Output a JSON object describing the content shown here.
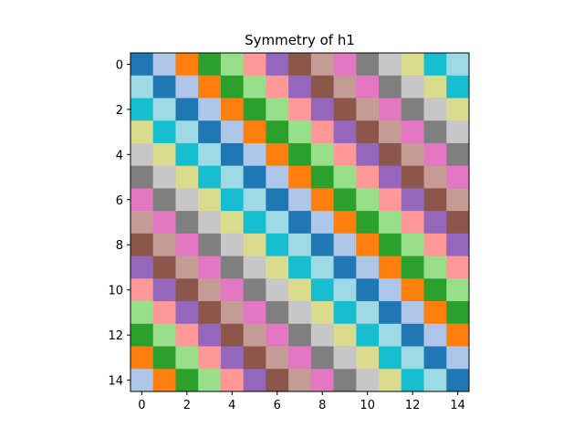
{
  "chart_data": {
    "type": "heatmap",
    "title": "Symmetry of h1",
    "xlabel": "",
    "ylabel": "",
    "rows": 15,
    "cols": 15,
    "xlim": [
      -0.5,
      14.5
    ],
    "ylim": [
      14.5,
      -0.5
    ],
    "x_ticks": [
      0,
      2,
      4,
      6,
      8,
      10,
      12,
      14
    ],
    "y_ticks": [
      0,
      2,
      4,
      6,
      8,
      10,
      12,
      14
    ],
    "x_tick_labels": [
      "0",
      "2",
      "4",
      "6",
      "8",
      "10",
      "12",
      "14"
    ],
    "y_tick_labels": [
      "0",
      "2",
      "4",
      "6",
      "8",
      "10",
      "12",
      "14"
    ],
    "colormap": "tab20",
    "palette": [
      "#1f77b4",
      "#aec7e8",
      "#ff7f0e",
      "#2ca02c",
      "#98df8a",
      "#ff9896",
      "#9467bd",
      "#8c564b",
      "#c49c94",
      "#e377c2",
      "#7f7f7f",
      "#c7c7c7",
      "#dbdb8d",
      "#17becf",
      "#9edae5"
    ],
    "values": [
      [
        0,
        1,
        2,
        3,
        4,
        5,
        6,
        7,
        8,
        9,
        10,
        11,
        12,
        13,
        14
      ],
      [
        14,
        0,
        1,
        2,
        3,
        4,
        5,
        6,
        7,
        8,
        9,
        10,
        11,
        12,
        13
      ],
      [
        13,
        14,
        0,
        1,
        2,
        3,
        4,
        5,
        6,
        7,
        8,
        9,
        10,
        11,
        12
      ],
      [
        12,
        13,
        14,
        0,
        1,
        2,
        3,
        4,
        5,
        6,
        7,
        8,
        9,
        10,
        11
      ],
      [
        11,
        12,
        13,
        14,
        0,
        1,
        2,
        3,
        4,
        5,
        6,
        7,
        8,
        9,
        10
      ],
      [
        10,
        11,
        12,
        13,
        14,
        0,
        1,
        2,
        3,
        4,
        5,
        6,
        7,
        8,
        9
      ],
      [
        9,
        10,
        11,
        12,
        13,
        14,
        0,
        1,
        2,
        3,
        4,
        5,
        6,
        7,
        8
      ],
      [
        8,
        9,
        10,
        11,
        12,
        13,
        14,
        0,
        1,
        2,
        3,
        4,
        5,
        6,
        7
      ],
      [
        7,
        8,
        9,
        10,
        11,
        12,
        13,
        14,
        0,
        1,
        2,
        3,
        4,
        5,
        6
      ],
      [
        6,
        7,
        8,
        9,
        10,
        11,
        12,
        13,
        14,
        0,
        1,
        2,
        3,
        4,
        5
      ],
      [
        5,
        6,
        7,
        8,
        9,
        10,
        11,
        12,
        13,
        14,
        0,
        1,
        2,
        3,
        4
      ],
      [
        4,
        5,
        6,
        7,
        8,
        9,
        10,
        11,
        12,
        13,
        14,
        0,
        1,
        2,
        3
      ],
      [
        3,
        4,
        5,
        6,
        7,
        8,
        9,
        10,
        11,
        12,
        13,
        14,
        0,
        1,
        2
      ],
      [
        2,
        3,
        4,
        5,
        6,
        7,
        8,
        9,
        10,
        11,
        12,
        13,
        14,
        0,
        1
      ],
      [
        1,
        2,
        3,
        4,
        5,
        6,
        7,
        8,
        9,
        10,
        11,
        12,
        13,
        14,
        0
      ]
    ],
    "grid": false,
    "legend": "none"
  }
}
